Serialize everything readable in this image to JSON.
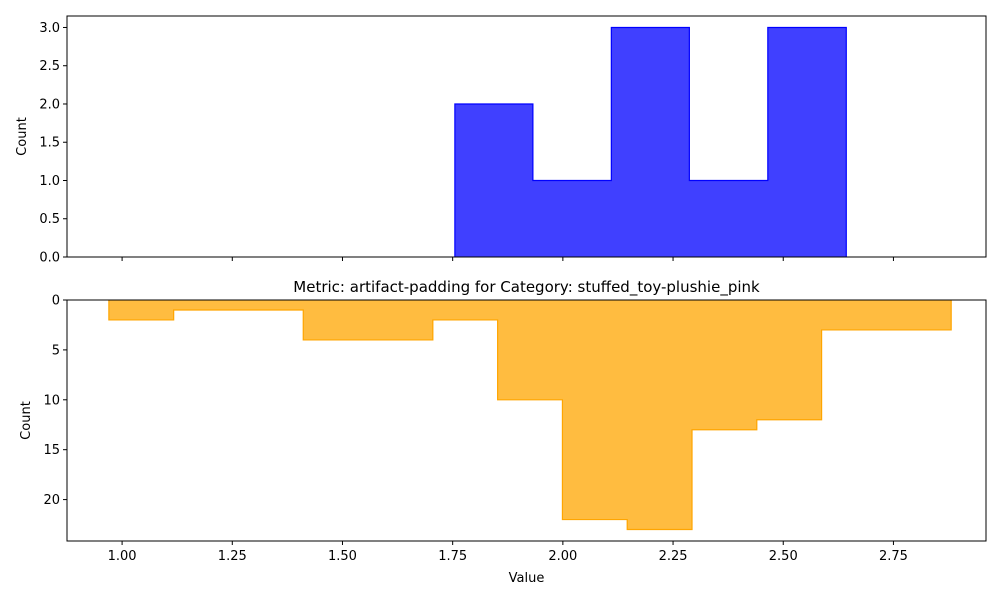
{
  "chart_data": [
    {
      "type": "area",
      "subtype": "step-histogram",
      "title": "",
      "xlabel": "",
      "ylabel": "Count",
      "xlim": [
        0.875,
        2.96
      ],
      "ylim": [
        0,
        3.15
      ],
      "y_ticks": [
        "0.0",
        "0.5",
        "1.0",
        "1.5",
        "2.0",
        "2.5",
        "3.0"
      ],
      "x_ticks_shown_labels": false,
      "color": "#0000ff",
      "fill_opacity": 0.75,
      "bin_edges": [
        1.755,
        1.932,
        2.11,
        2.287,
        2.465,
        2.643
      ],
      "counts": [
        2,
        1,
        3,
        1,
        3
      ]
    },
    {
      "type": "area",
      "subtype": "step-histogram",
      "title": "Metric: artifact-padding for Category: stuffed_toy-plushie_pink",
      "xlabel": "Value",
      "ylabel": "Count",
      "xlim": [
        0.875,
        2.96
      ],
      "ylim": [
        24.15,
        0
      ],
      "y_inverted": true,
      "x_ticks": [
        "1.00",
        "1.25",
        "1.50",
        "1.75",
        "2.00",
        "2.25",
        "2.50",
        "2.75"
      ],
      "y_ticks": [
        "0",
        "5",
        "10",
        "15",
        "20"
      ],
      "color": "#ffa500",
      "fill_opacity": 0.75,
      "bin_edges": [
        0.97,
        1.117,
        1.264,
        1.411,
        1.558,
        1.705,
        1.852,
        1.999,
        2.146,
        2.293,
        2.44,
        2.587,
        2.734,
        2.881
      ],
      "counts": [
        2,
        1,
        1,
        4,
        4,
        2,
        10,
        22,
        23,
        13,
        12,
        3,
        3
      ]
    }
  ]
}
